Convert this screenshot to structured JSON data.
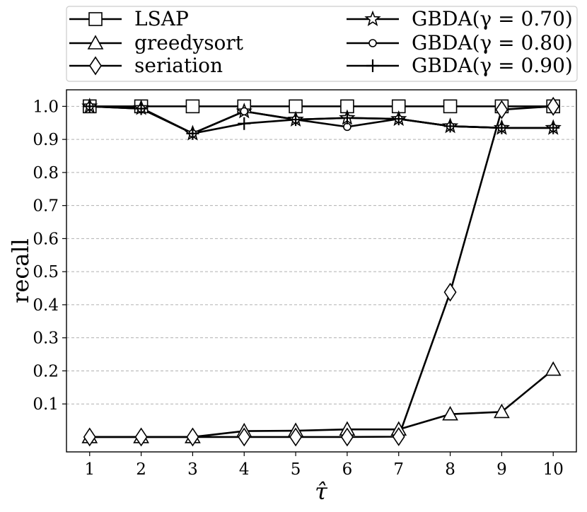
{
  "chart_data": {
    "type": "line",
    "xlabel": "τ̂",
    "ylabel": "recall",
    "x": [
      1,
      2,
      3,
      4,
      5,
      6,
      7,
      8,
      9,
      10
    ],
    "xlim": [
      0.55,
      10.45
    ],
    "ylim": [
      -0.045,
      1.05
    ],
    "xticks": [
      "1",
      "2",
      "3",
      "4",
      "5",
      "6",
      "7",
      "8",
      "9",
      "10"
    ],
    "yticks": [
      "0.1",
      "0.2",
      "0.3",
      "0.4",
      "0.5",
      "0.6",
      "0.7",
      "0.8",
      "0.9",
      "1.0"
    ],
    "grid": "horizontal dashed",
    "legend_position": "above plot, two columns",
    "series": [
      {
        "name": "LSAP",
        "marker": "square",
        "values": [
          1.0,
          1.0,
          1.0,
          1.0,
          1.0,
          1.0,
          1.0,
          1.0,
          1.0,
          1.0
        ]
      },
      {
        "name": "greedysort",
        "marker": "triangle",
        "values": [
          0.0,
          0.0,
          0.0,
          0.018,
          0.019,
          0.023,
          0.023,
          0.069,
          0.076,
          0.204
        ]
      },
      {
        "name": "seriation",
        "marker": "diamond",
        "values": [
          0.0,
          0.0,
          0.0,
          0.0,
          0.0,
          0.0,
          0.001,
          0.438,
          0.99,
          1.0
        ]
      },
      {
        "name": "GBDA(γ = 0.70)",
        "marker": "star",
        "values": [
          1.0,
          0.995,
          0.918,
          0.985,
          0.96,
          0.965,
          0.962,
          0.94,
          0.935,
          0.935
        ]
      },
      {
        "name": "GBDA(γ = 0.80)",
        "marker": "circle",
        "values": [
          1.0,
          0.993,
          0.918,
          0.985,
          0.96,
          0.938,
          0.962,
          0.94,
          0.935,
          0.935
        ]
      },
      {
        "name": "GBDA(γ = 0.90)",
        "marker": "plus",
        "values": [
          1.0,
          0.993,
          0.918,
          0.948,
          0.96,
          0.965,
          0.962,
          0.94,
          0.935,
          0.935
        ]
      }
    ]
  }
}
